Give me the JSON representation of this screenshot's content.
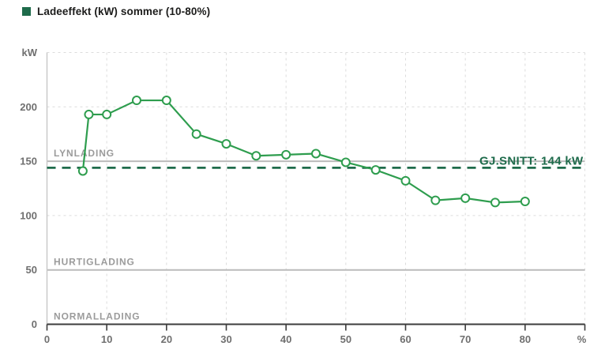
{
  "legend": {
    "label": "Ladeeffekt (kW) sommer (10-80%)",
    "swatch_color": "#1E6B4B"
  },
  "chart_data": {
    "type": "line",
    "title": "Ladeeffekt (kW) sommer (10-80%)",
    "xlabel": "%",
    "ylabel": "kW",
    "xlim": [
      0,
      90
    ],
    "ylim": [
      0,
      250
    ],
    "grid": {
      "x_step": 10,
      "y_dashed_levels": [
        100,
        200,
        250
      ],
      "legend_position": "top-left"
    },
    "x_ticks": [
      0,
      10,
      20,
      30,
      40,
      50,
      60,
      70,
      80
    ],
    "y_ticks": [
      0,
      50,
      100,
      150,
      200
    ],
    "series": [
      {
        "name": "Ladeeffekt (kW) sommer (10-80%)",
        "x": [
          6,
          7,
          10,
          15,
          20,
          25,
          30,
          35,
          40,
          45,
          50,
          55,
          60,
          65,
          70,
          75,
          80
        ],
        "values": [
          141,
          193,
          193,
          206,
          206,
          175,
          166,
          155,
          156,
          157,
          149,
          142,
          132,
          114,
          116,
          112,
          113
        ]
      }
    ],
    "reference_lines": [
      {
        "label": "LYNLADING",
        "value": 150
      },
      {
        "label": "HURTIGLADING",
        "value": 50
      },
      {
        "label": "NORMALLADING",
        "value": 0
      }
    ],
    "average_line": {
      "label": "GJ.SNITT: 144 kW",
      "value": 144
    }
  },
  "colors": {
    "series_line": "#2E9D4E",
    "marker_fill": "#FFFFFF",
    "accent_dark_green": "#1E6B4B",
    "zone_label": "#9B9B9B",
    "tick_label": "#6F6F6F",
    "gridline": "#DCDCDC",
    "reference_line": "#BBBBBB",
    "x_axis": "#3C3C3C",
    "y_axis": "#C9C9C9"
  }
}
